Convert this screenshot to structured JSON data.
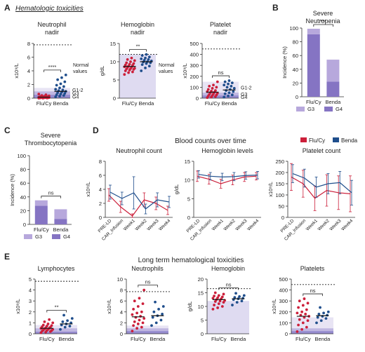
{
  "colors": {
    "fluCy": "#cc1f3a",
    "benda": "#1f4e8c",
    "g3": "#b7a8dc",
    "g4": "#8574c3",
    "band12": "#e6e1f3",
    "bandG3": "#b9afde",
    "bandG4": "#8b7fca",
    "bandHb": "#dcd7ef",
    "accentLink": "#2a6bb0"
  },
  "header": {
    "tag_a": "A",
    "hem_title": "Hematologic toxicities",
    "tag_b": "B",
    "tag_c": "C",
    "tag_d": "D",
    "d_title": "Blood counts over time",
    "tag_e": "E",
    "e_title": "Long term hematological toxicities"
  },
  "legend": {
    "flu": "Flu/Cy",
    "benda": "Benda"
  },
  "chart_data": [
    {
      "id": "A1",
      "type": "scatter",
      "title": "Neutrophil nadir",
      "ylabel": "x10⁹/L",
      "ylim": [
        0,
        8
      ],
      "yticks": [
        "0",
        "2",
        "4",
        "6",
        "8"
      ],
      "categories": [
        "Flu/Cy",
        "Benda"
      ],
      "normal_line": 7.8,
      "normal_label": "Normal values",
      "bands": [
        [
          "1",
          "1.5",
          "G1-2"
        ],
        [
          "0.5",
          "1",
          "G3"
        ],
        [
          "0",
          "0.5",
          "G4"
        ]
      ],
      "sig": "****",
      "series": [
        {
          "name": "Flu/Cy",
          "values": [
            0.0,
            0.0,
            0.02,
            0.03,
            0.05,
            0.05,
            0.06,
            0.08,
            0.08,
            0.1,
            0.1,
            0.12,
            0.14,
            0.15,
            0.18,
            0.2,
            0.22,
            0.25,
            0.3,
            0.35,
            0.4,
            0.5,
            0.6
          ],
          "median": 0.15
        },
        {
          "name": "Benda",
          "values": [
            0.2,
            0.3,
            0.4,
            0.5,
            0.6,
            0.7,
            0.8,
            0.9,
            1.0,
            1.1,
            1.2,
            1.3,
            1.5,
            1.7,
            1.9,
            2.1,
            2.4,
            2.7,
            3.0,
            3.4
          ],
          "median": 1.0
        }
      ]
    },
    {
      "id": "A2",
      "type": "scatter",
      "title": "Hemoglobin nadir",
      "ylabel": "g/dL",
      "ylim": [
        0,
        15
      ],
      "yticks": [
        "0",
        "5",
        "10",
        "15"
      ],
      "categories": [
        "Flu/Cy",
        "Benda"
      ],
      "normal_line": 12,
      "normal_label": "Normal values",
      "bands": [
        [
          "0",
          "12",
          ""
        ]
      ],
      "sig": "**",
      "series": [
        {
          "name": "Flu/Cy",
          "values": [
            6.5,
            7.0,
            7.2,
            7.5,
            7.7,
            7.9,
            8.0,
            8.1,
            8.2,
            8.4,
            8.5,
            8.6,
            8.8,
            9.0,
            9.1,
            9.3,
            9.5,
            9.7,
            10.0,
            10.3,
            10.6,
            11.0
          ],
          "median": 8.7
        },
        {
          "name": "Benda",
          "values": [
            7.5,
            8.3,
            8.8,
            9.2,
            9.5,
            9.7,
            9.9,
            10.0,
            10.2,
            10.4,
            10.6,
            10.8,
            11.0,
            11.3,
            11.7,
            12.0
          ],
          "median": 10.0
        }
      ]
    },
    {
      "id": "A3",
      "type": "scatter",
      "title": "Platelet nadir",
      "ylabel": "x10⁹/L",
      "ylim": [
        0,
        500
      ],
      "yticks": [
        "0",
        "100",
        "200",
        "300",
        "400",
        "500"
      ],
      "categories": [
        "Flu/Cy",
        "Benda"
      ],
      "normal_line": 450,
      "normal_label": "",
      "bands": [
        [
          "50",
          "150",
          "G1-2"
        ],
        [
          "25",
          "50",
          "G3"
        ],
        [
          "0",
          "25",
          "G4"
        ]
      ],
      "sig": "ns",
      "series": [
        {
          "name": "Flu/Cy",
          "values": [
            5,
            10,
            15,
            20,
            25,
            30,
            35,
            40,
            45,
            50,
            55,
            60,
            65,
            70,
            80,
            90,
            100,
            110,
            120,
            150
          ],
          "median": 55
        },
        {
          "name": "Benda",
          "values": [
            10,
            20,
            30,
            40,
            50,
            60,
            70,
            80,
            90,
            100,
            110,
            120,
            130,
            140,
            150,
            160
          ],
          "median": 75
        }
      ]
    },
    {
      "id": "B",
      "type": "bar",
      "title": "Severe Neutropenia",
      "ylabel": "Incidence (%)",
      "ylim": [
        0,
        100
      ],
      "yticks": [
        "0",
        "20",
        "40",
        "60",
        "80",
        "100"
      ],
      "categories": [
        "Flu/Cy",
        "Benda"
      ],
      "stacked": true,
      "sig": "***",
      "series": [
        {
          "name": "G4",
          "values": [
            91,
            22
          ]
        },
        {
          "name": "G3",
          "values": [
            8,
            32
          ]
        }
      ]
    },
    {
      "id": "C",
      "type": "bar",
      "title": "Severe Thrombocytopenia",
      "ylabel": "Incidence (%)",
      "ylim": [
        0,
        100
      ],
      "yticks": [
        "0",
        "20",
        "40",
        "60",
        "80",
        "100"
      ],
      "categories": [
        "Flu/Cy",
        "Benda"
      ],
      "stacked": true,
      "sig": "ns",
      "series": [
        {
          "name": "G4",
          "values": [
            27,
            8
          ]
        },
        {
          "name": "G3",
          "values": [
            8,
            14
          ]
        }
      ]
    },
    {
      "id": "D1",
      "type": "line",
      "title": "Neutrophil count",
      "ylabel": "x10⁹/L",
      "ylim": [
        0,
        8
      ],
      "yticks": [
        "0",
        "2",
        "4",
        "6",
        "8"
      ],
      "categories": [
        "PRE-LD",
        "CAR_Infusion",
        "Week1",
        "Week2",
        "Week3",
        "Week4"
      ],
      "series": [
        {
          "name": "Flu/Cy",
          "values": [
            3.2,
            1.5,
            0.2,
            2.5,
            2.0,
            1.0
          ],
          "err": [
            0.9,
            0.8,
            0.3,
            1.0,
            0.9,
            0.6
          ]
        },
        {
          "name": "Benda",
          "values": [
            3.6,
            2.7,
            3.5,
            1.2,
            2.5,
            2.2
          ],
          "err": [
            1.0,
            0.9,
            2.3,
            0.7,
            1.0,
            0.8
          ]
        }
      ]
    },
    {
      "id": "D2",
      "type": "line",
      "title": "Hemoglobin levels",
      "ylabel": "g/dL",
      "ylim": [
        0,
        15
      ],
      "yticks": [
        "0",
        "5",
        "10",
        "15"
      ],
      "categories": [
        "PRE-LD",
        "CAR_Infusion",
        "Week1",
        "Week2",
        "Week3",
        "Week4"
      ],
      "series": [
        {
          "name": "Flu/Cy",
          "values": [
            11.0,
            10.2,
            9.0,
            10.0,
            10.8,
            11.0
          ],
          "err": [
            1.4,
            1.3,
            1.2,
            1.3,
            1.2,
            1.0
          ]
        },
        {
          "name": "Benda",
          "values": [
            11.5,
            11.0,
            10.8,
            10.9,
            11.2,
            11.3
          ],
          "err": [
            1.0,
            1.0,
            1.0,
            1.1,
            1.0,
            1.0
          ]
        }
      ]
    },
    {
      "id": "D3",
      "type": "line",
      "title": "Platelet count",
      "ylabel": "x10⁹/L",
      "ylim": [
        0,
        250
      ],
      "yticks": [
        "0",
        "50",
        "100",
        "150",
        "200",
        "250"
      ],
      "categories": [
        "PRE-LD",
        "CAR_Infusion",
        "Week1",
        "Week2",
        "Week3",
        "Week4"
      ],
      "series": [
        {
          "name": "Flu/Cy",
          "values": [
            180,
            150,
            85,
            120,
            110,
            105
          ],
          "err": [
            60,
            60,
            55,
            70,
            75,
            80
          ]
        },
        {
          "name": "Benda",
          "values": [
            195,
            175,
            135,
            150,
            155,
            110
          ],
          "err": [
            40,
            40,
            45,
            45,
            50,
            55
          ]
        }
      ]
    },
    {
      "id": "E1",
      "type": "scatter",
      "title": "Lymphocytes",
      "ylabel": "x10⁹/L",
      "ylim": [
        0,
        5
      ],
      "yticks": [
        "0",
        "1",
        "2",
        "3",
        "4",
        "5"
      ],
      "categories": [
        "Flu/Cy",
        "Benda"
      ],
      "normal_line": 4.8,
      "normal_label": "",
      "bands": [
        [
          "0.5",
          "0.8",
          ""
        ],
        [
          "0.2",
          "0.5",
          ""
        ],
        [
          "0",
          "0.2",
          ""
        ]
      ],
      "sig": "**",
      "series": [
        {
          "name": "Flu/Cy",
          "values": [
            0.1,
            0.15,
            0.2,
            0.25,
            0.3,
            0.3,
            0.35,
            0.4,
            0.4,
            0.45,
            0.5,
            0.5,
            0.55,
            0.6,
            0.65,
            0.7,
            0.75,
            0.8,
            0.9,
            1.0,
            1.1,
            1.3
          ],
          "median": 0.5
        },
        {
          "name": "Benda",
          "values": [
            0.4,
            0.6,
            0.7,
            0.8,
            0.9,
            1.0,
            1.1,
            1.2,
            1.4,
            1.7
          ],
          "median": 0.9
        }
      ]
    },
    {
      "id": "E2",
      "type": "scatter",
      "title": "Neutrophils",
      "ylabel": "x10⁹/L",
      "ylim": [
        0,
        10
      ],
      "yticks": [
        "0",
        "2",
        "4",
        "6",
        "8",
        "10"
      ],
      "categories": [
        "Flu/Cy",
        "Benda"
      ],
      "normal_line": 7.7,
      "normal_label": "",
      "bands": [
        [
          "1",
          "1.5",
          ""
        ],
        [
          "0.5",
          "1",
          ""
        ],
        [
          "0",
          "0.5",
          ""
        ]
      ],
      "sig": "ns",
      "series": [
        {
          "name": "Flu/Cy",
          "values": [
            0.5,
            1.0,
            1.2,
            1.5,
            1.8,
            2.0,
            2.2,
            2.5,
            2.8,
            3.0,
            3.2,
            3.5,
            3.8,
            4.0,
            4.5,
            5.0,
            5.5,
            6.0,
            6.5,
            8.0
          ],
          "median": 3.1
        },
        {
          "name": "Benda",
          "values": [
            1.5,
            2.0,
            2.5,
            3.0,
            3.3,
            3.6,
            4.0,
            4.5,
            5.0,
            5.8
          ],
          "median": 3.3
        }
      ]
    },
    {
      "id": "E3",
      "type": "scatter",
      "title": "Hemoglobin",
      "ylabel": "g/dL",
      "ylim": [
        0,
        20
      ],
      "yticks": [
        "0",
        "5",
        "10",
        "15",
        "20"
      ],
      "categories": [
        "Flu/Cy",
        "Benda"
      ],
      "normal_line": 16.5,
      "normal_label": "",
      "bands": [
        [
          "0",
          "12",
          ""
        ]
      ],
      "sig": "ns",
      "series": [
        {
          "name": "Flu/Cy",
          "values": [
            9.0,
            9.5,
            10.0,
            10.5,
            11.0,
            11.5,
            11.8,
            12.0,
            12.2,
            12.5,
            12.8,
            13.0,
            13.2,
            13.5,
            13.8,
            14.0,
            14.5,
            15.0
          ],
          "median": 12.5
        },
        {
          "name": "Benda",
          "values": [
            10.5,
            11.5,
            12.0,
            12.5,
            12.8,
            13.0,
            13.3,
            13.6,
            14.0,
            14.8
          ],
          "median": 12.8
        }
      ]
    },
    {
      "id": "E4",
      "type": "scatter",
      "title": "Platelets",
      "ylabel": "x10⁹/L",
      "ylim": [
        0,
        500
      ],
      "yticks": [
        "0",
        "100",
        "200",
        "300",
        "400",
        "500"
      ],
      "categories": [
        "Flu/Cy",
        "Benda"
      ],
      "normal_line": 450,
      "normal_label": "",
      "bands": [
        [
          "50",
          "150",
          ""
        ],
        [
          "25",
          "50",
          ""
        ],
        [
          "0",
          "25",
          ""
        ]
      ],
      "sig": "ns",
      "series": [
        {
          "name": "Flu/Cy",
          "values": [
            20,
            40,
            60,
            80,
            100,
            120,
            130,
            150,
            160,
            170,
            180,
            190,
            200,
            220,
            240,
            260,
            280,
            300,
            320
          ],
          "median": 160
        },
        {
          "name": "Benda",
          "values": [
            100,
            120,
            140,
            150,
            160,
            170,
            180,
            190,
            200,
            240
          ],
          "median": 165
        }
      ]
    }
  ]
}
